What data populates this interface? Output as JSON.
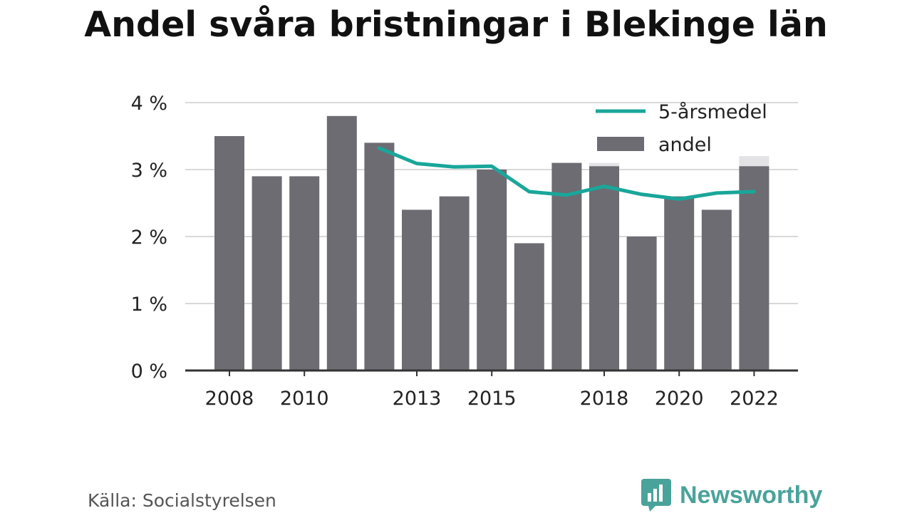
{
  "title": "Andel svåra bristningar i Blekinge län",
  "source": "Källa: Socialstyrelsen",
  "brand": "Newsworthy",
  "colors": {
    "bar": "#6d6c72",
    "bar_shadow": "#e3e3e6",
    "line": "#1aa69a",
    "grid": "#d9d9d9",
    "axis": "#333333"
  },
  "chart_data": {
    "type": "bar",
    "title": "Andel svåra bristningar i Blekinge län",
    "x": [
      2008,
      2009,
      2010,
      2011,
      2012,
      2013,
      2014,
      2015,
      2016,
      2017,
      2018,
      2019,
      2020,
      2021,
      2022
    ],
    "x_tick_labels": [
      "2008",
      "2010",
      "2013",
      "2015",
      "2018",
      "2020",
      "2022"
    ],
    "y_tick_labels": [
      "0 %",
      "1 %",
      "2 %",
      "3 %",
      "4 %"
    ],
    "ylim": [
      0,
      4
    ],
    "grid": true,
    "legend_position": "top-right",
    "series": [
      {
        "name": "andel",
        "type": "bar",
        "values": [
          3.5,
          2.9,
          2.9,
          3.8,
          3.4,
          2.4,
          2.6,
          3.0,
          1.9,
          3.1,
          3.05,
          2.0,
          2.6,
          2.4,
          3.05
        ]
      },
      {
        "name": "5-årsmedel",
        "type": "line",
        "values": [
          null,
          null,
          null,
          null,
          3.32,
          3.09,
          3.04,
          3.05,
          2.67,
          2.62,
          2.75,
          2.63,
          2.56,
          2.65,
          2.67
        ]
      }
    ],
    "bar_shadow_values": [
      null,
      null,
      null,
      null,
      null,
      null,
      null,
      null,
      null,
      null,
      3.1,
      null,
      null,
      null,
      3.2
    ]
  }
}
